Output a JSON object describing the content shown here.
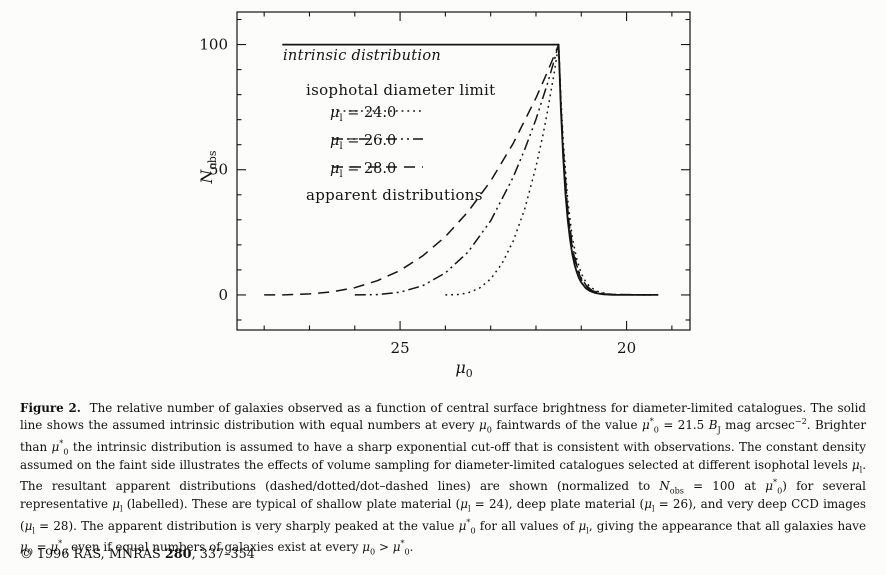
{
  "figure": {
    "ylabel_html": "<i>N</i><sub>obs</sub>",
    "xlabel_html": "<i>μ</i><sub>0</sub>",
    "legend": {
      "intrinsic_label": "intrinsic distribution",
      "heading": "isophotal diameter limit",
      "items": [
        {
          "label_html": "<i>μ</i><sub>l</sub> = 24.0",
          "style": "dotted"
        },
        {
          "label_html": "<i>μ</i><sub>l</sub> = 26.0",
          "style": "dotdash"
        },
        {
          "label_html": "<i>μ</i><sub>l</sub> = 28.0",
          "style": "dashed"
        }
      ],
      "footer": "apparent distributions"
    }
  },
  "chart_data": {
    "type": "line",
    "title": "",
    "xlabel": "mu_0 (central surface brightness)",
    "ylabel": "N_obs",
    "x_axis": {
      "left_value": 28.6,
      "right_value": 18.6,
      "reversed": true,
      "major_ticks": [
        25,
        20
      ],
      "minor_tick_step": 1
    },
    "y_axis": {
      "min": -14,
      "max": 113,
      "major_ticks": [
        0,
        50,
        100
      ],
      "minor_tick_step": 10
    },
    "mu_star": 21.5,
    "normalization": 100,
    "series": [
      {
        "name": "intrinsic distribution",
        "style": "solid",
        "points": [
          [
            27.6,
            100
          ],
          [
            21.5,
            100
          ],
          [
            21.45,
            74
          ],
          [
            21.4,
            54.9
          ],
          [
            21.35,
            40.7
          ],
          [
            21.3,
            30.1
          ],
          [
            21.25,
            22.3
          ],
          [
            21.2,
            16.5
          ],
          [
            21.15,
            12.2
          ],
          [
            21.1,
            9.1
          ],
          [
            21.05,
            6.7
          ],
          [
            21.0,
            5.0
          ],
          [
            20.9,
            2.7
          ],
          [
            20.8,
            1.5
          ],
          [
            20.7,
            0.8
          ],
          [
            20.6,
            0.5
          ],
          [
            20.5,
            0.25
          ],
          [
            20.3,
            0.07
          ],
          [
            20.0,
            0.01
          ],
          [
            19.3,
            0
          ]
        ]
      },
      {
        "name": "apparent distribution, mu_l = 24.0",
        "style": "dotted",
        "points": [
          [
            24.0,
            0
          ],
          [
            23.75,
            0.1
          ],
          [
            23.5,
            0.8
          ],
          [
            23.25,
            2.7
          ],
          [
            23.0,
            6.4
          ],
          [
            22.75,
            12.5
          ],
          [
            22.5,
            21.6
          ],
          [
            22.25,
            34.3
          ],
          [
            22.0,
            51.2
          ],
          [
            21.85,
            63.6
          ],
          [
            21.75,
            72.9
          ],
          [
            21.6,
            88.5
          ],
          [
            21.5,
            100
          ],
          [
            21.45,
            78.6
          ],
          [
            21.4,
            61.7
          ],
          [
            21.3,
            37.9
          ],
          [
            21.2,
            23.2
          ],
          [
            21.1,
            14.2
          ],
          [
            21.0,
            8.6
          ],
          [
            20.9,
            5.2
          ],
          [
            20.8,
            3.1
          ],
          [
            20.6,
            1.1
          ],
          [
            20.4,
            0.4
          ],
          [
            20.2,
            0.15
          ],
          [
            20.0,
            0.05
          ],
          [
            19.4,
            0
          ]
        ]
      },
      {
        "name": "apparent distribution, mu_l = 26.0",
        "style": "dotdash",
        "points": [
          [
            26.0,
            0
          ],
          [
            25.5,
            0.14
          ],
          [
            25.0,
            1.1
          ],
          [
            24.5,
            3.7
          ],
          [
            24.0,
            8.8
          ],
          [
            23.5,
            17.1
          ],
          [
            23.0,
            29.6
          ],
          [
            22.5,
            47.1
          ],
          [
            22.25,
            58.1
          ],
          [
            22.0,
            70.2
          ],
          [
            21.75,
            84.2
          ],
          [
            21.6,
            93.5
          ],
          [
            21.5,
            100
          ],
          [
            21.45,
            76.6
          ],
          [
            21.4,
            58.6
          ],
          [
            21.3,
            34.3
          ],
          [
            21.2,
            20.1
          ],
          [
            21.1,
            11.7
          ],
          [
            21.0,
            6.8
          ],
          [
            20.9,
            4.0
          ],
          [
            20.8,
            2.3
          ],
          [
            20.6,
            0.8
          ],
          [
            20.4,
            0.3
          ],
          [
            20.2,
            0.1
          ],
          [
            19.4,
            0
          ]
        ]
      },
      {
        "name": "apparent distribution, mu_l = 28.0",
        "style": "dashed",
        "points": [
          [
            28.0,
            0
          ],
          [
            27.5,
            0.05
          ],
          [
            27.0,
            0.4
          ],
          [
            26.5,
            1.2
          ],
          [
            26.0,
            2.9
          ],
          [
            25.5,
            5.7
          ],
          [
            25.0,
            9.8
          ],
          [
            24.5,
            15.6
          ],
          [
            24.0,
            23.3
          ],
          [
            23.5,
            33.2
          ],
          [
            23.0,
            45.5
          ],
          [
            22.5,
            60.6
          ],
          [
            22.0,
            78.7
          ],
          [
            21.75,
            88.9
          ],
          [
            21.6,
            95.5
          ],
          [
            21.5,
            100
          ],
          [
            21.45,
            75.8
          ],
          [
            21.4,
            57.4
          ],
          [
            21.3,
            33.0
          ],
          [
            21.2,
            18.9
          ],
          [
            21.1,
            10.8
          ],
          [
            21.0,
            6.2
          ],
          [
            20.9,
            3.6
          ],
          [
            20.8,
            2.0
          ],
          [
            20.6,
            0.7
          ],
          [
            20.4,
            0.2
          ],
          [
            19.4,
            0
          ]
        ]
      }
    ],
    "legend_position": "upper-left-inside",
    "grid": false
  },
  "caption_html": "<b>Figure 2.</b>&nbsp; The relative number of galaxies observed as a function of central surface brightness for diameter-limited catalogues. The solid line shows the assumed intrinsic distribution with equal numbers at every <i>μ</i><sub>0</sub> faintwards of the value <i>μ</i><sup>*</sup><sub>0</sub> = 21.5 <i>B</i><sub>J</sub> mag arcsec<sup>−2</sup>. Brighter than <i>μ</i><sup>*</sup><sub>0</sub> the intrinsic distribution is assumed to have a sharp exponential cut-off that is consistent with observations. The constant density assumed on the faint side illustrates the effects of volume sampling for diameter-limited catalogues selected at different isophotal levels <i>μ</i><sub>l</sub>. The resultant apparent distributions (dashed/dotted/dot–dashed lines) are shown (normalized to <i>N</i><sub>obs</sub> = 100 at <i>μ</i><sup>*</sup><sub>0</sub>) for several representative <i>μ</i><sub>l</sub> (labelled). These are typical of shallow plate material (<i>μ</i><sub>l</sub> = 24), deep plate material (<i>μ</i><sub>l</sub> = 26), and very deep CCD images (<i>μ</i><sub>l</sub> = 28). The apparent distribution is very sharply peaked at the value <i>μ</i><sup>*</sup><sub>0</sub> for all values of <i>μ</i><sub>l</sub>, giving the appearance that all galaxies have <i>μ</i><sub>0</sub> = <i>μ</i><sup>*</sup><sub>0</sub> even if equal numbers of galaxies exist at every <i>μ</i><sub>0</sub> &gt; <i>μ</i><sup>*</sup><sub>0</sub>.",
  "copyright_html": "© 1996 RAS, MNRAS <b>280</b>, 337–354"
}
